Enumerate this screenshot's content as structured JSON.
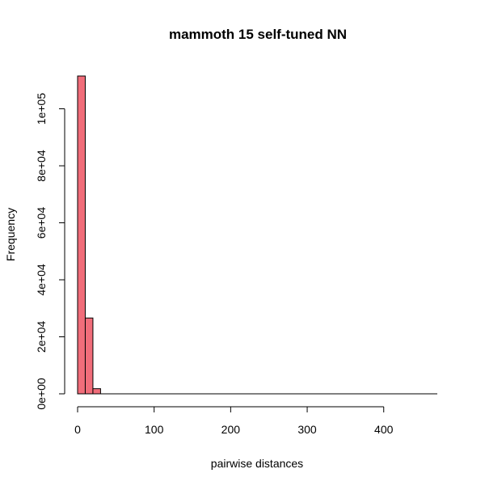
{
  "chart_data": {
    "type": "bar",
    "title": "mammoth 15 self-tuned NN",
    "xlabel": "pairwise distances",
    "ylabel": "Frequency",
    "bar_color": "#F16D7A",
    "bins": [
      {
        "start": 0,
        "end": 10,
        "count": 111500
      },
      {
        "start": 10,
        "end": 20,
        "count": 26600
      },
      {
        "start": 20,
        "end": 30,
        "count": 1800
      },
      {
        "start": 30,
        "end": 40,
        "count": 0
      },
      {
        "start": 40,
        "end": 470,
        "count": 0
      }
    ],
    "xlim": [
      0,
      470
    ],
    "ylim": [
      0,
      111500
    ],
    "x_ticks": [
      {
        "value": 0,
        "label": "0"
      },
      {
        "value": 100,
        "label": "100"
      },
      {
        "value": 200,
        "label": "200"
      },
      {
        "value": 300,
        "label": "300"
      },
      {
        "value": 400,
        "label": "400"
      }
    ],
    "y_ticks": [
      {
        "value": 0,
        "label": "0e+00"
      },
      {
        "value": 20000,
        "label": "2e+04"
      },
      {
        "value": 40000,
        "label": "4e+04"
      },
      {
        "value": 60000,
        "label": "6e+04"
      },
      {
        "value": 80000,
        "label": "8e+04"
      },
      {
        "value": 100000,
        "label": "1e+05"
      }
    ]
  }
}
